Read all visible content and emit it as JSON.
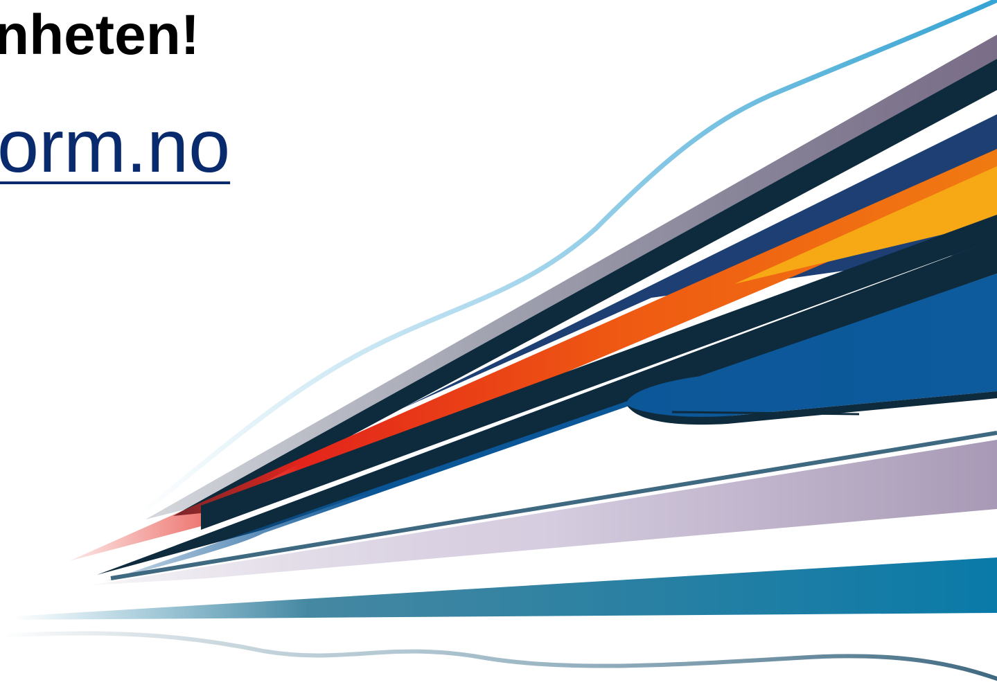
{
  "slide": {
    "headline": "nheten!",
    "link_text": "orm.no"
  },
  "graphic": {
    "name": "speed-streaks",
    "colors": {
      "line_blue": "#35a3d3",
      "grey_purple": "#7a6d88",
      "navy": "#0e2a3d",
      "dark_blue": "#1d3f73",
      "orange": "#f07a12",
      "amber": "#f7a815",
      "red": "#e3241b",
      "royal_blue": "#0a5596",
      "lilac": "#bdaec8",
      "steel": "#3f6980",
      "teal": "#0a7aa8",
      "link_color": "#0a2a6e"
    }
  }
}
